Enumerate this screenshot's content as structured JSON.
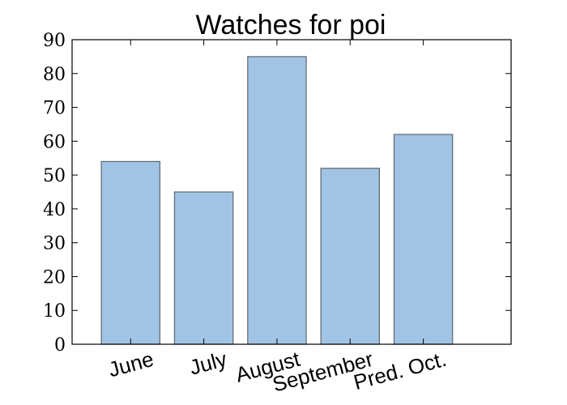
{
  "chart_data": {
    "type": "bar",
    "title": "Watches for poi",
    "categories": [
      "June",
      "July",
      "August",
      "September",
      "Pred. Oct."
    ],
    "values": [
      54,
      45,
      85,
      52,
      62
    ],
    "xlabel": "",
    "ylabel": "",
    "ylim": [
      0,
      90
    ],
    "yticks": [
      "0",
      "10",
      "20",
      "30",
      "40",
      "50",
      "60",
      "70",
      "80",
      "90"
    ],
    "grid": false,
    "legend": "none",
    "colors": {
      "bar_fill": "#a1c3e4",
      "bar_edge": "#5b6770",
      "axes": "#000000"
    }
  }
}
